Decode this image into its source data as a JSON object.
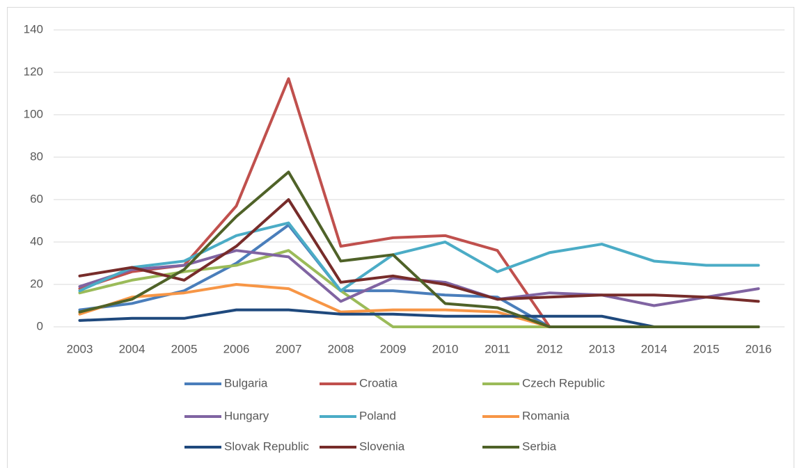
{
  "chart_data": {
    "type": "line",
    "categories": [
      "2003",
      "2004",
      "2005",
      "2006",
      "2007",
      "2008",
      "2009",
      "2010",
      "2011",
      "2012",
      "2013",
      "2014",
      "2015",
      "2016"
    ],
    "series": [
      {
        "name": "Bulgaria",
        "color": "#4a7ebb",
        "values": [
          8,
          11,
          17,
          30,
          48,
          17,
          17,
          15,
          14,
          0,
          0,
          0,
          0,
          0
        ]
      },
      {
        "name": "Croatia",
        "color": "#c0504d",
        "values": [
          18,
          26,
          29,
          57,
          117,
          38,
          42,
          43,
          36,
          0,
          0,
          0,
          0,
          0
        ]
      },
      {
        "name": "Czech Republic",
        "color": "#9bbb59",
        "values": [
          16,
          22,
          26,
          29,
          36,
          17,
          0,
          0,
          0,
          0,
          0,
          0,
          0,
          0
        ]
      },
      {
        "name": "Hungary",
        "color": "#8064a2",
        "values": [
          19,
          27,
          29,
          36,
          33,
          12,
          23,
          21,
          13,
          16,
          15,
          10,
          14,
          18
        ]
      },
      {
        "name": "Poland",
        "color": "#4bacc6",
        "values": [
          17,
          28,
          31,
          43,
          49,
          17,
          34,
          40,
          26,
          35,
          39,
          31,
          29,
          29
        ]
      },
      {
        "name": "Romania",
        "color": "#f79646",
        "values": [
          6,
          14,
          16,
          20,
          18,
          7,
          8,
          8,
          7,
          0,
          0,
          0,
          0,
          0
        ]
      },
      {
        "name": "Slovak Republic",
        "color": "#1f497d",
        "values": [
          3,
          4,
          4,
          8,
          8,
          6,
          6,
          5,
          5,
          5,
          5,
          0,
          0,
          0
        ]
      },
      {
        "name": "Slovenia",
        "color": "#772c2a",
        "values": [
          24,
          28,
          22,
          38,
          60,
          21,
          24,
          20,
          13,
          14,
          15,
          15,
          14,
          12
        ]
      },
      {
        "name": "Serbia",
        "color": "#4f6228",
        "values": [
          7,
          13,
          27,
          52,
          73,
          31,
          34,
          11,
          9,
          0,
          0,
          0,
          0,
          0
        ]
      }
    ],
    "ylim": [
      0,
      140
    ],
    "yticks": [
      0,
      20,
      40,
      60,
      80,
      100,
      120,
      140
    ],
    "grid": true,
    "legend": "bottom"
  }
}
